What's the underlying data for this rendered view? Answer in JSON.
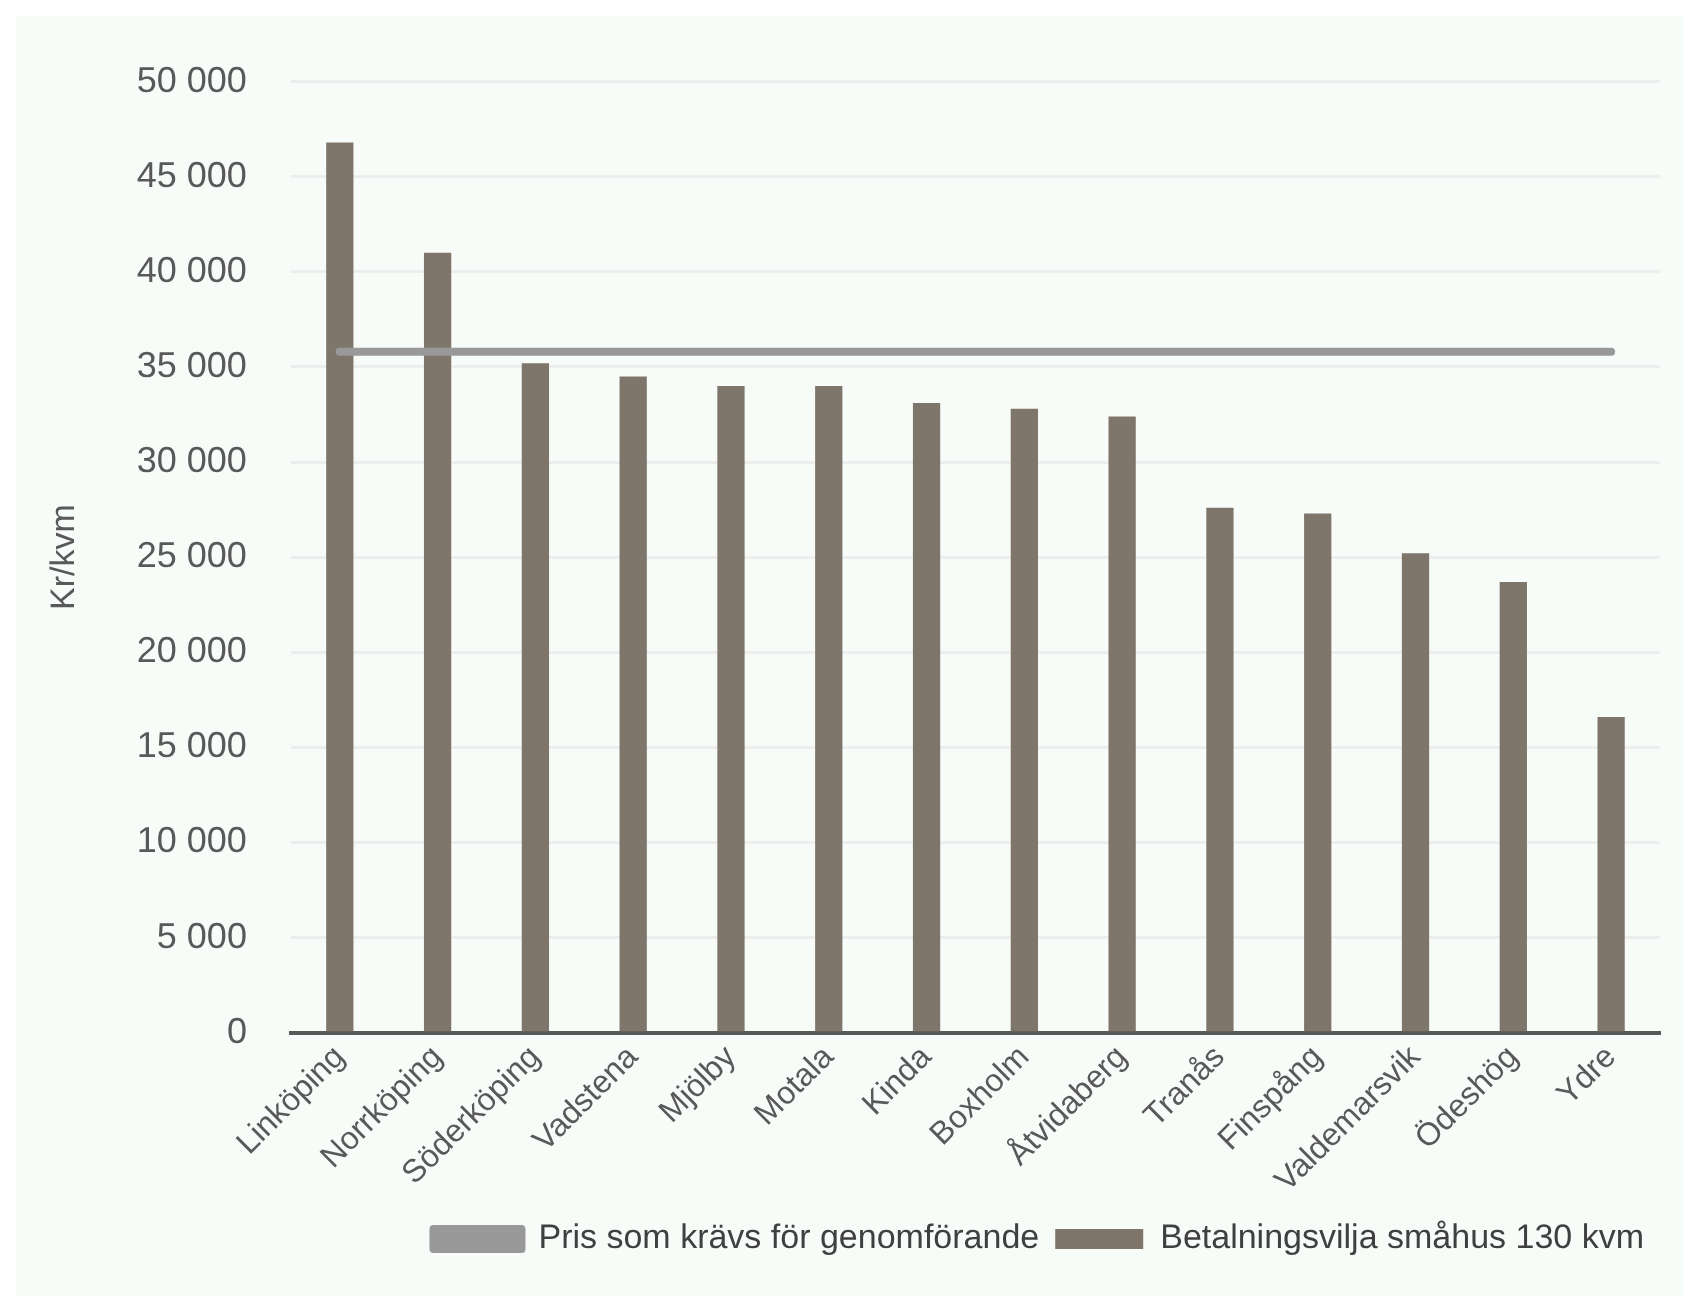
{
  "chart_data": {
    "type": "bar",
    "ylabel": "Kr/kvm",
    "categories": [
      "Linköping",
      "Norrköping",
      "Söderköping",
      "Vadstena",
      "Mjölby",
      "Motala",
      "Kinda",
      "Boxholm",
      "Åtvidaberg",
      "Tranås",
      "Finspång",
      "Valdemarsvik",
      "Ödeshög",
      "Ydre"
    ],
    "series": [
      {
        "name": "Betalningsvilja småhus 130 kvm",
        "color": "#7f766b",
        "values": [
          46800,
          41000,
          35200,
          34500,
          34000,
          34000,
          33100,
          32800,
          32400,
          27600,
          27300,
          25200,
          23700,
          16600
        ]
      },
      {
        "name": "Pris som krävs för genomförande",
        "type": "line",
        "color": "#999999",
        "values": [
          35800,
          35800,
          35800,
          35800,
          35800,
          35800,
          35800,
          35800,
          35800,
          35800,
          35800,
          35800,
          35800,
          35800
        ]
      }
    ],
    "ylim": [
      0,
      50000
    ],
    "yticks": [
      {
        "value": 0,
        "label": "0"
      },
      {
        "value": 5000,
        "label": "5 000"
      },
      {
        "value": 10000,
        "label": "10 000"
      },
      {
        "value": 15000,
        "label": "15 000"
      },
      {
        "value": 20000,
        "label": "20 000"
      },
      {
        "value": 25000,
        "label": "25 000"
      },
      {
        "value": 30000,
        "label": "30 000"
      },
      {
        "value": 35000,
        "label": "35 000"
      },
      {
        "value": 40000,
        "label": "40 000"
      },
      {
        "value": 45000,
        "label": "45 000"
      },
      {
        "value": 50000,
        "label": "50 000"
      }
    ],
    "grid": "y",
    "legend": "bottom",
    "marker": "none"
  }
}
